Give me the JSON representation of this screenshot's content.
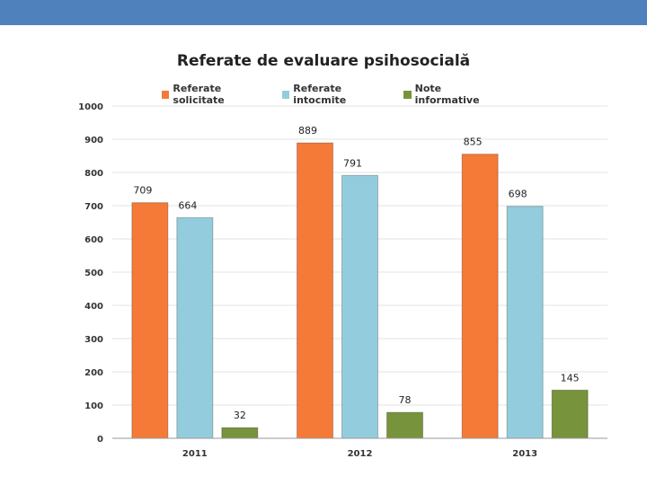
{
  "colors": {
    "header_band": "#4f81bd",
    "series": [
      "#f57a38",
      "#93cddd",
      "#77933c"
    ]
  },
  "chart_data": {
    "type": "bar",
    "title": "Referate de evaluare psihosocială",
    "categories": [
      "2011",
      "2012",
      "2013"
    ],
    "series": [
      {
        "name": "Referate solicitate",
        "values": [
          709,
          889,
          855
        ]
      },
      {
        "name": "Referate intocmite",
        "values": [
          664,
          791,
          698
        ]
      },
      {
        "name": "Note informative",
        "values": [
          32,
          78,
          145
        ]
      }
    ],
    "xlabel": "",
    "ylabel": "",
    "ylim": [
      0,
      1000
    ],
    "yticks": [
      0,
      100,
      200,
      300,
      400,
      500,
      600,
      700,
      800,
      900,
      1000
    ],
    "grid": true,
    "legend_position": "top"
  }
}
